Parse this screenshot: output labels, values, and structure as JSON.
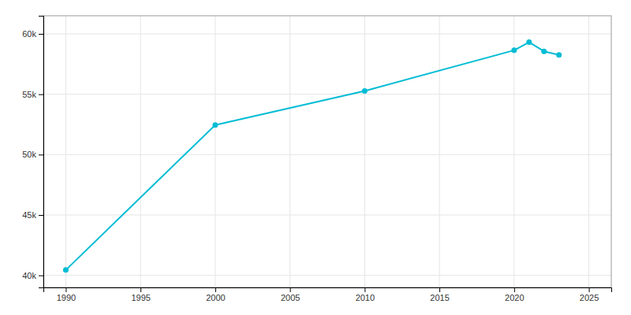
{
  "chart_data": {
    "type": "line",
    "x": [
      1990,
      2000,
      2010,
      2020,
      2021,
      2022,
      2023
    ],
    "values": [
      40443,
      52457,
      55274,
      58639,
      59308,
      58552,
      58251
    ],
    "color": "#00BCD4",
    "marker": "circle",
    "xlim": [
      1988.5,
      2026.5
    ],
    "ylim": [
      39000,
      61500
    ],
    "xticks": [
      1990,
      1995,
      2000,
      2005,
      2010,
      2015,
      2020,
      2025
    ],
    "yticks": [
      {
        "value": 40000,
        "label": "40k"
      },
      {
        "value": 45000,
        "label": "45k"
      },
      {
        "value": 50000,
        "label": "50k"
      },
      {
        "value": 55000,
        "label": "55k"
      },
      {
        "value": 60000,
        "label": "60k"
      }
    ],
    "grid": true
  }
}
